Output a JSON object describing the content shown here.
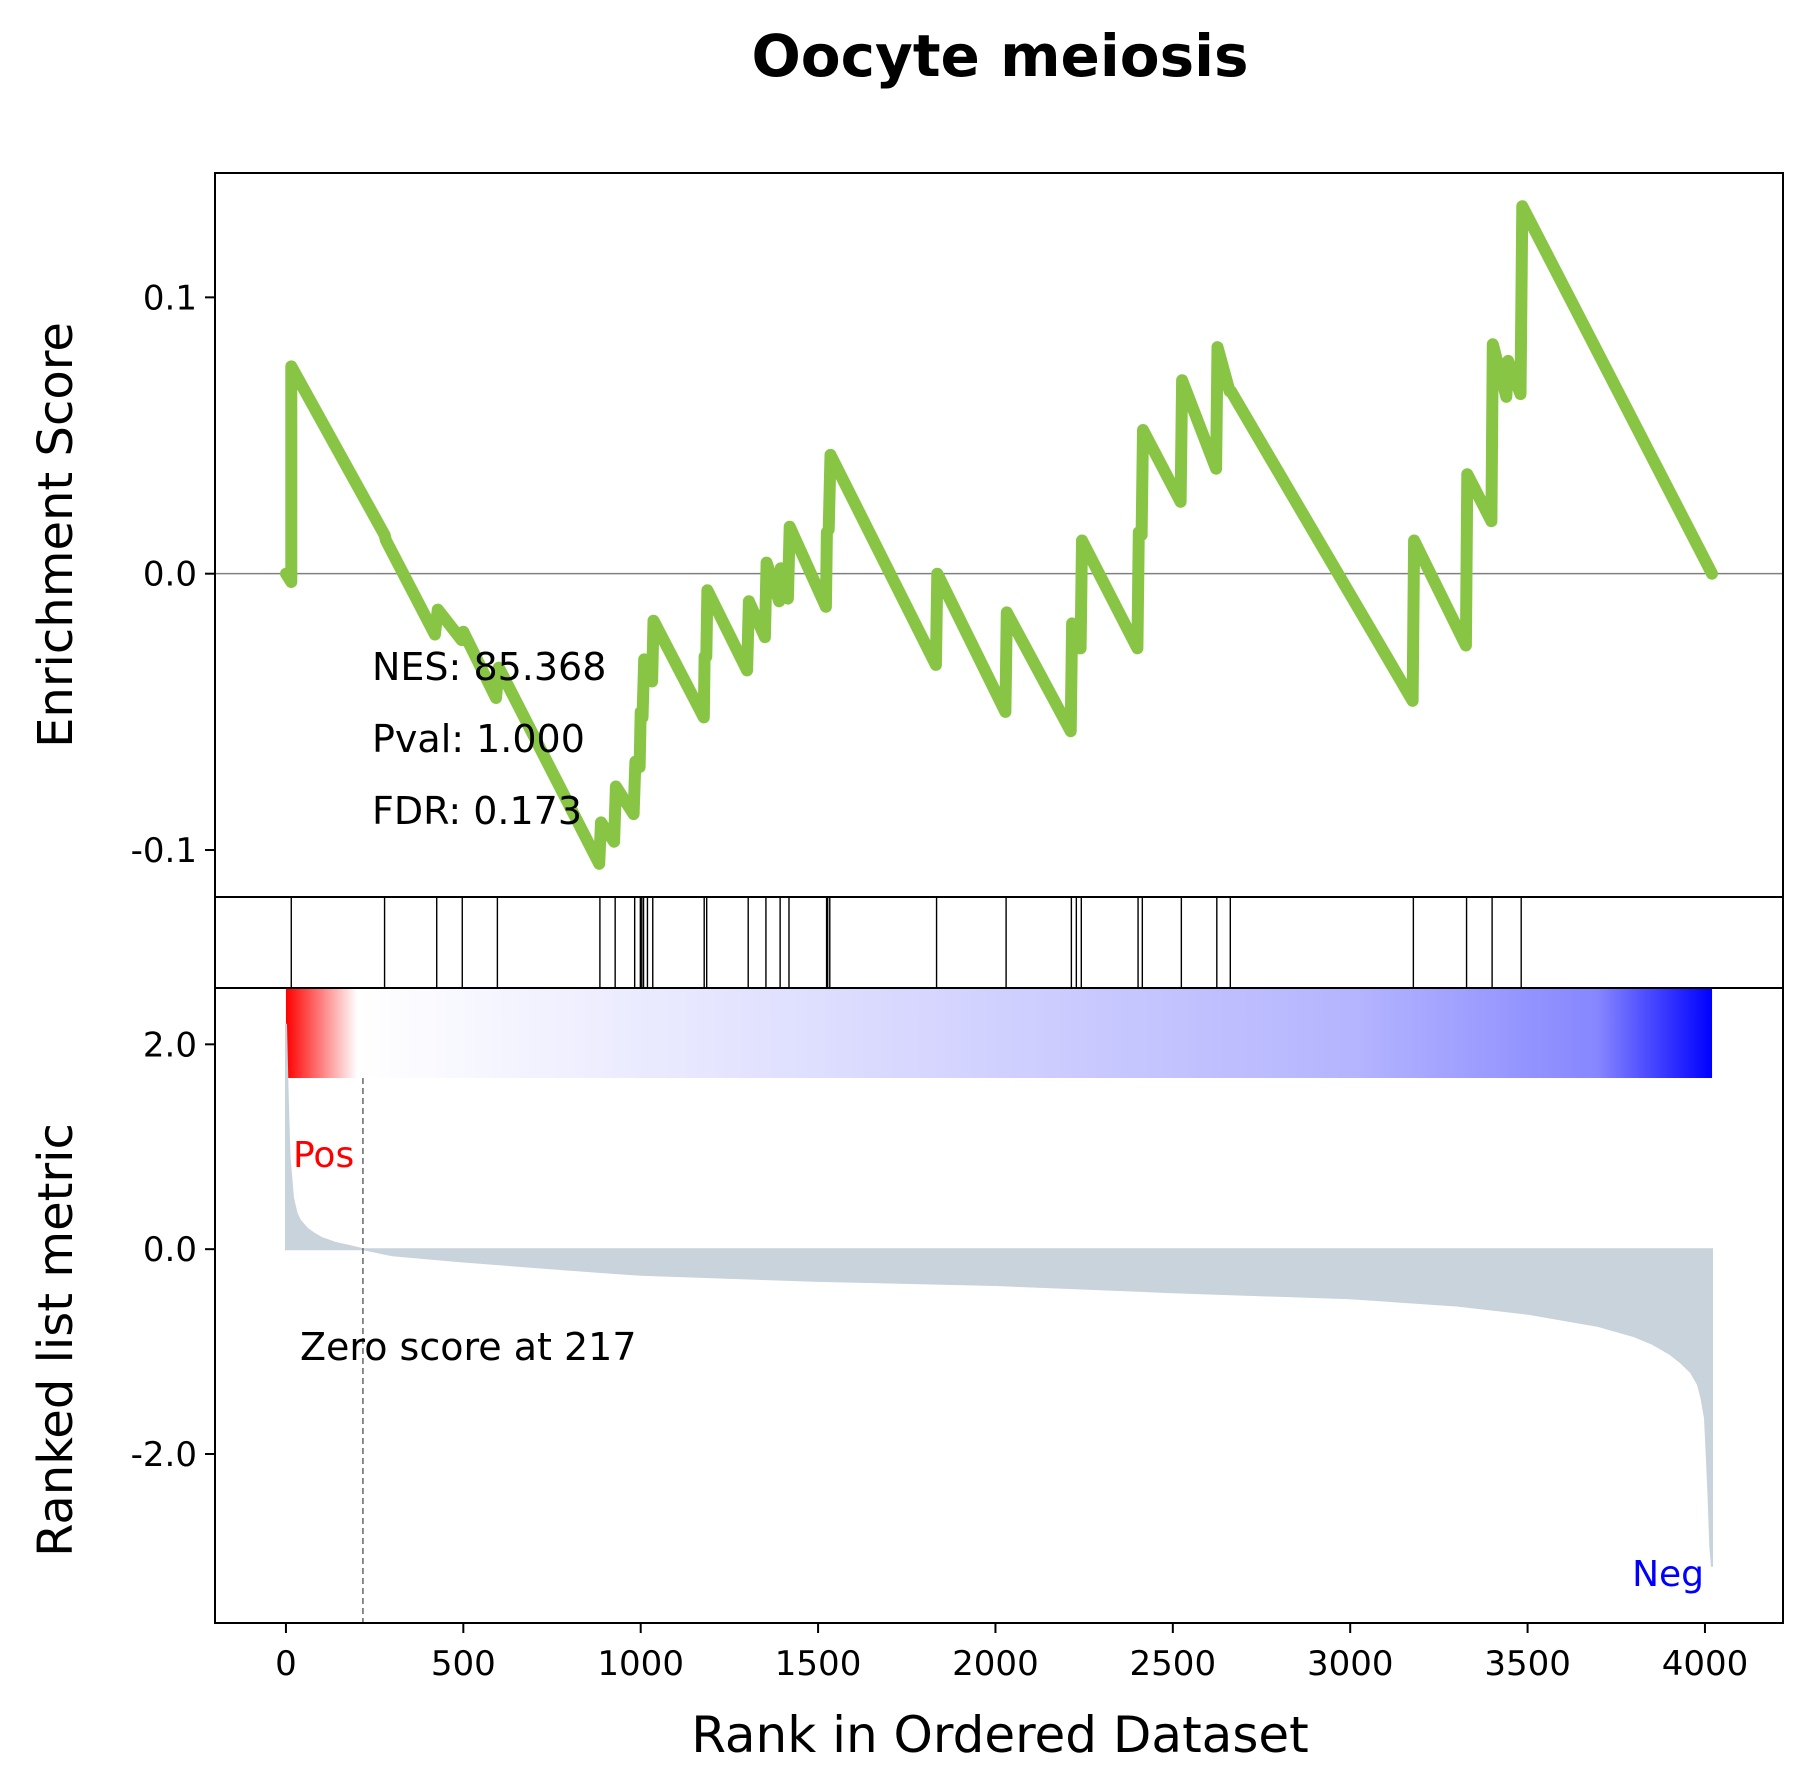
{
  "chart_data": {
    "type": "line",
    "title": "Oocyte meiosis",
    "xlabel": "Rank in Ordered Dataset",
    "xlim": [
      -200,
      4220
    ],
    "xticks": [
      0,
      500,
      1000,
      1500,
      2000,
      2500,
      3000,
      3500,
      4000
    ],
    "xtick_labels": [
      "0",
      "500",
      "1000",
      "1500",
      "2000",
      "2500",
      "3000",
      "3500",
      "4000"
    ],
    "n_genes": 4020,
    "enrichment": {
      "ylabel": "Enrichment Score",
      "ylim": [
        -0.117,
        0.145
      ],
      "yticks": [
        -0.1,
        0.0,
        0.1
      ],
      "ytick_labels": [
        "-0.1",
        "0.0",
        "0.1"
      ],
      "line_color": "#88c544",
      "series": {
        "name": "",
        "x": [
          0,
          15,
          15,
          278,
          282,
          420,
          428,
          495,
          500,
          592,
          600,
          883,
          888,
          925,
          930,
          980,
          985,
          997,
          1000,
          1005,
          1010,
          1018,
          1020,
          1032,
          1036,
          1178,
          1180,
          1185,
          1188,
          1300,
          1305,
          1350,
          1355,
          1390,
          1395,
          1415,
          1420,
          1522,
          1525,
          1530,
          1535,
          1832,
          1836,
          2028,
          2032,
          2212,
          2216,
          2226,
          2230,
          2240,
          2244,
          2400,
          2404,
          2412,
          2416,
          2522,
          2526,
          2622,
          2626,
          2660,
          2664,
          3176,
          3180,
          3326,
          3330,
          3398,
          3402,
          3440,
          3445,
          3480,
          3485,
          4020
        ],
        "values": [
          0.0,
          -0.003,
          0.075,
          0.014,
          0.012,
          -0.022,
          -0.013,
          -0.024,
          -0.021,
          -0.045,
          -0.034,
          -0.105,
          -0.09,
          -0.097,
          -0.077,
          -0.087,
          -0.068,
          -0.07,
          -0.05,
          -0.052,
          -0.031,
          -0.034,
          -0.033,
          -0.039,
          -0.017,
          -0.052,
          -0.03,
          -0.03,
          -0.006,
          -0.035,
          -0.01,
          -0.023,
          0.004,
          -0.01,
          0.002,
          -0.009,
          0.017,
          -0.012,
          0.015,
          0.016,
          0.043,
          -0.033,
          0.0,
          -0.05,
          -0.014,
          -0.057,
          -0.018,
          -0.019,
          -0.027,
          -0.027,
          0.012,
          -0.027,
          0.015,
          0.014,
          0.052,
          0.026,
          0.07,
          0.038,
          0.082,
          0.066,
          0.066,
          -0.046,
          0.012,
          -0.026,
          0.036,
          0.019,
          0.083,
          0.064,
          0.077,
          0.065,
          0.133,
          0.0
        ]
      },
      "hits": [
        15,
        278,
        425,
        497,
        596,
        885,
        928,
        983,
        999,
        1003,
        1008,
        1019,
        1034,
        1179,
        1186,
        1303,
        1353,
        1393,
        1418,
        1524,
        1527,
        1533,
        1834,
        2030,
        2214,
        2228,
        2242,
        2402,
        2414,
        2524,
        2624,
        2662,
        3178,
        3328,
        3400,
        3482
      ],
      "annotations": [
        "NES: 85.368",
        "Pval: 1.000",
        "FDR: 0.173"
      ]
    },
    "ranked_metric": {
      "ylabel": "Ranked list metric",
      "ylim": [
        -3.65,
        2.55
      ],
      "yticks": [
        -2.0,
        0.0,
        2.0
      ],
      "ytick_labels": [
        "-2.0",
        "0.0",
        "2.0"
      ],
      "fill_color": "#c8d3dc",
      "zero_cross_rank": 217,
      "zero_label": "Zero score at 217",
      "pos_label": "Pos",
      "neg_label": "Neg",
      "pos_color": "#ff0000",
      "neg_color": "#0000ff",
      "series": {
        "name": "",
        "x": [
          0,
          5,
          10,
          20,
          30,
          40,
          60,
          80,
          100,
          140,
          180,
          217,
          300,
          500,
          800,
          1000,
          1500,
          2000,
          2500,
          3000,
          3300,
          3500,
          3700,
          3800,
          3850,
          3900,
          3930,
          3960,
          3980,
          3990,
          4000,
          4005,
          4010,
          4015,
          4020
        ],
        "values": [
          2.2,
          1.5,
          0.9,
          0.5,
          0.35,
          0.28,
          0.2,
          0.15,
          0.11,
          0.06,
          0.03,
          0.0,
          -0.06,
          -0.12,
          -0.2,
          -0.25,
          -0.31,
          -0.35,
          -0.42,
          -0.48,
          -0.55,
          -0.63,
          -0.75,
          -0.85,
          -0.92,
          -1.02,
          -1.1,
          -1.2,
          -1.32,
          -1.45,
          -1.65,
          -2.0,
          -2.4,
          -2.9,
          -3.1
        ]
      }
    },
    "colorbar": {
      "from": "#ff0000",
      "mid": "#ffffff",
      "to": "#0000ff"
    }
  }
}
